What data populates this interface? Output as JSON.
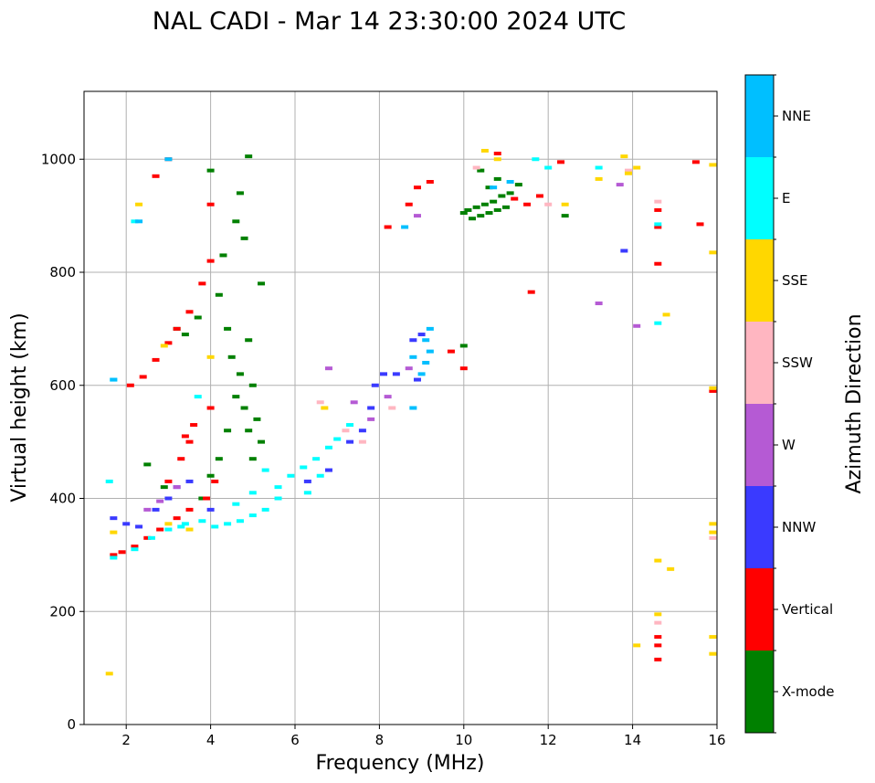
{
  "chart_data": {
    "type": "scatter",
    "title": "NAL CADI - Mar 14 23:30:00 2024 UTC",
    "xlabel": "Frequency (MHz)",
    "ylabel": "Virtual height (km)",
    "xlim": [
      1,
      16
    ],
    "ylim": [
      0,
      1120
    ],
    "xticks": [
      2,
      4,
      6,
      8,
      10,
      12,
      14,
      16
    ],
    "yticks": [
      0,
      200,
      400,
      600,
      800,
      1000
    ],
    "grid": true,
    "colorbar": {
      "label": "Azimuth Direction",
      "categories": [
        "X-mode",
        "Vertical",
        "NNW",
        "W",
        "SSW",
        "SSE",
        "E",
        "NNE"
      ],
      "colors": [
        "#008000",
        "#ff0000",
        "#3a3aff",
        "#b55ad4",
        "#ffb6c1",
        "#ffd700",
        "#00ffff",
        "#00bfff"
      ]
    },
    "series": [
      {
        "name": "X-mode",
        "points": [
          [
            10.0,
            905
          ],
          [
            10.1,
            910
          ],
          [
            10.2,
            895
          ],
          [
            10.3,
            915
          ],
          [
            10.4,
            900
          ],
          [
            10.5,
            920
          ],
          [
            10.6,
            905
          ],
          [
            10.7,
            925
          ],
          [
            10.8,
            910
          ],
          [
            10.9,
            935
          ],
          [
            11.0,
            915
          ],
          [
            10.6,
            950
          ],
          [
            10.8,
            965
          ],
          [
            11.1,
            940
          ],
          [
            10.4,
            980
          ],
          [
            11.3,
            955
          ],
          [
            12.4,
            900
          ],
          [
            4.0,
            980
          ],
          [
            4.6,
            890
          ],
          [
            4.7,
            940
          ],
          [
            4.8,
            860
          ],
          [
            4.9,
            1005
          ],
          [
            4.3,
            830
          ],
          [
            4.2,
            760
          ],
          [
            4.4,
            700
          ],
          [
            4.5,
            650
          ],
          [
            4.7,
            620
          ],
          [
            4.8,
            560
          ],
          [
            4.9,
            520
          ],
          [
            5.0,
            470
          ],
          [
            4.6,
            580
          ],
          [
            4.4,
            520
          ],
          [
            4.2,
            470
          ],
          [
            4.0,
            440
          ],
          [
            3.8,
            400
          ],
          [
            4.9,
            680
          ],
          [
            5.0,
            600
          ],
          [
            5.1,
            540
          ],
          [
            5.2,
            500
          ],
          [
            3.2,
            700
          ],
          [
            3.4,
            690
          ],
          [
            3.7,
            720
          ],
          [
            2.5,
            460
          ],
          [
            2.9,
            420
          ],
          [
            5.2,
            780
          ],
          [
            10.0,
            670
          ]
        ]
      },
      {
        "name": "Vertical",
        "points": [
          [
            1.7,
            300
          ],
          [
            1.9,
            305
          ],
          [
            2.2,
            315
          ],
          [
            2.5,
            330
          ],
          [
            2.8,
            345
          ],
          [
            3.2,
            365
          ],
          [
            3.5,
            380
          ],
          [
            3.9,
            400
          ],
          [
            4.1,
            430
          ],
          [
            3.0,
            430
          ],
          [
            3.3,
            470
          ],
          [
            3.5,
            500
          ],
          [
            3.6,
            530
          ],
          [
            4.0,
            560
          ],
          [
            3.4,
            510
          ],
          [
            2.1,
            600
          ],
          [
            2.4,
            615
          ],
          [
            2.7,
            645
          ],
          [
            3.0,
            675
          ],
          [
            3.2,
            700
          ],
          [
            3.5,
            730
          ],
          [
            3.8,
            780
          ],
          [
            4.0,
            820
          ],
          [
            4.0,
            920
          ],
          [
            2.7,
            970
          ],
          [
            3.0,
            1000
          ],
          [
            8.2,
            880
          ],
          [
            8.7,
            920
          ],
          [
            8.9,
            950
          ],
          [
            9.2,
            960
          ],
          [
            9.7,
            660
          ],
          [
            10.0,
            630
          ],
          [
            10.8,
            1010
          ],
          [
            11.2,
            930
          ],
          [
            11.5,
            920
          ],
          [
            11.8,
            935
          ],
          [
            12.3,
            995
          ],
          [
            14.6,
            910
          ],
          [
            14.6,
            815
          ],
          [
            14.6,
            880
          ],
          [
            15.5,
            995
          ],
          [
            15.6,
            885
          ],
          [
            15.9,
            590
          ],
          [
            14.6,
            155
          ],
          [
            14.6,
            140
          ],
          [
            14.6,
            115
          ],
          [
            11.6,
            765
          ]
        ]
      },
      {
        "name": "NNW",
        "points": [
          [
            1.7,
            365
          ],
          [
            2.0,
            355
          ],
          [
            2.3,
            350
          ],
          [
            2.7,
            380
          ],
          [
            3.0,
            400
          ],
          [
            3.2,
            420
          ],
          [
            3.5,
            430
          ],
          [
            4.0,
            380
          ],
          [
            6.3,
            430
          ],
          [
            6.8,
            450
          ],
          [
            7.3,
            500
          ],
          [
            7.6,
            520
          ],
          [
            7.8,
            560
          ],
          [
            7.9,
            600
          ],
          [
            8.1,
            620
          ],
          [
            8.4,
            620
          ],
          [
            8.8,
            680
          ],
          [
            9.0,
            690
          ],
          [
            8.9,
            610
          ],
          [
            13.8,
            838
          ]
        ]
      },
      {
        "name": "W",
        "points": [
          [
            2.5,
            380
          ],
          [
            2.8,
            395
          ],
          [
            3.2,
            420
          ],
          [
            6.8,
            630
          ],
          [
            7.4,
            570
          ],
          [
            7.8,
            540
          ],
          [
            8.2,
            580
          ],
          [
            8.7,
            630
          ],
          [
            8.9,
            900
          ],
          [
            13.2,
            745
          ],
          [
            14.1,
            705
          ],
          [
            13.7,
            955
          ]
        ]
      },
      {
        "name": "SSW",
        "points": [
          [
            6.6,
            570
          ],
          [
            7.2,
            520
          ],
          [
            7.6,
            500
          ],
          [
            8.3,
            560
          ],
          [
            10.3,
            985
          ],
          [
            12.0,
            920
          ],
          [
            14.6,
            925
          ],
          [
            14.6,
            180
          ],
          [
            13.9,
            980
          ],
          [
            15.9,
            330
          ]
        ]
      },
      {
        "name": "SSE",
        "points": [
          [
            1.6,
            90
          ],
          [
            1.7,
            340
          ],
          [
            2.3,
            920
          ],
          [
            2.9,
            670
          ],
          [
            3.0,
            355
          ],
          [
            3.5,
            345
          ],
          [
            4.0,
            650
          ],
          [
            6.7,
            560
          ],
          [
            10.5,
            1015
          ],
          [
            10.8,
            1000
          ],
          [
            12.4,
            920
          ],
          [
            13.2,
            965
          ],
          [
            13.8,
            1005
          ],
          [
            13.9,
            975
          ],
          [
            14.1,
            985
          ],
          [
            14.1,
            140
          ],
          [
            14.6,
            290
          ],
          [
            14.6,
            195
          ],
          [
            14.8,
            725
          ],
          [
            14.9,
            275
          ],
          [
            15.9,
            990
          ],
          [
            15.9,
            835
          ],
          [
            15.9,
            595
          ],
          [
            15.9,
            355
          ],
          [
            15.9,
            340
          ],
          [
            15.9,
            155
          ],
          [
            15.9,
            125
          ]
        ]
      },
      {
        "name": "E",
        "points": [
          [
            1.7,
            295
          ],
          [
            2.2,
            310
          ],
          [
            2.6,
            330
          ],
          [
            3.0,
            345
          ],
          [
            3.4,
            355
          ],
          [
            3.8,
            360
          ],
          [
            4.1,
            350
          ],
          [
            4.4,
            355
          ],
          [
            4.7,
            360
          ],
          [
            5.0,
            370
          ],
          [
            5.3,
            380
          ],
          [
            5.6,
            420
          ],
          [
            5.9,
            440
          ],
          [
            6.2,
            455
          ],
          [
            6.5,
            470
          ],
          [
            6.8,
            490
          ],
          [
            7.0,
            505
          ],
          [
            7.3,
            530
          ],
          [
            5.3,
            450
          ],
          [
            5.0,
            410
          ],
          [
            4.6,
            390
          ],
          [
            5.6,
            400
          ],
          [
            1.6,
            430
          ],
          [
            1.7,
            610
          ],
          [
            2.2,
            890
          ],
          [
            3.3,
            350
          ],
          [
            3.7,
            580
          ],
          [
            11.7,
            1000
          ],
          [
            12.0,
            985
          ],
          [
            13.2,
            985
          ],
          [
            14.6,
            885
          ],
          [
            14.6,
            710
          ],
          [
            6.3,
            410
          ],
          [
            6.6,
            440
          ]
        ]
      },
      {
        "name": "NNE",
        "points": [
          [
            1.7,
            610
          ],
          [
            2.3,
            890
          ],
          [
            3.0,
            1000
          ],
          [
            8.6,
            880
          ],
          [
            8.8,
            650
          ],
          [
            9.0,
            620
          ],
          [
            9.1,
            640
          ],
          [
            9.2,
            660
          ],
          [
            8.8,
            560
          ],
          [
            9.1,
            680
          ],
          [
            9.2,
            700
          ],
          [
            10.7,
            950
          ],
          [
            11.1,
            960
          ]
        ]
      }
    ]
  }
}
